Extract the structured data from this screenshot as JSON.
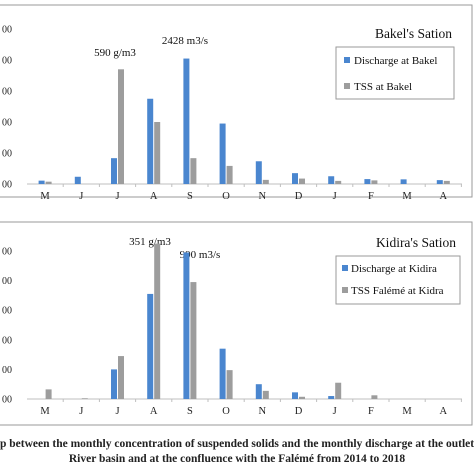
{
  "caption": {
    "line1": "p between the monthly concentration of suspended solids and the monthly discharge at the outlet of",
    "line2": "River basin and at the confluence with the Falémé from 2014 to 2018"
  },
  "colors": {
    "discharge": "#4a86cf",
    "tss": "#9d9d9d",
    "frame": "#9a9a9a",
    "axis": "#bfbfbf"
  },
  "chart_data": [
    {
      "type": "bar",
      "title": "Bakel's Sation",
      "categories": [
        "M",
        "J",
        "J",
        "A",
        "S",
        "O",
        "N",
        "D",
        "J",
        "F",
        "M",
        "A"
      ],
      "ylim": [
        0,
        3000
      ],
      "yticks_visible": [
        "00",
        "00",
        "00",
        "00",
        "00",
        "00"
      ],
      "series": [
        {
          "name": "Discharge at Bakel",
          "values": [
            65,
            140,
            500,
            1650,
            2428,
            1170,
            440,
            210,
            150,
            95,
            90,
            75
          ]
        },
        {
          "name": "TSS at Bakel",
          "values": [
            45,
            0,
            2220,
            1200,
            500,
            350,
            80,
            105,
            60,
            70,
            0,
            60
          ]
        }
      ],
      "annotations": [
        "590 g/m3",
        "2428 m3/s"
      ],
      "legend_position": "top-right"
    },
    {
      "type": "bar",
      "title": "Kidira's Sation",
      "categories": [
        "M",
        "J",
        "J",
        "A",
        "S",
        "O",
        "N",
        "D",
        "J",
        "F",
        "M",
        "A"
      ],
      "ylim": [
        0,
        1000
      ],
      "yticks_visible": [
        "00",
        "00",
        "00",
        "00",
        "00",
        "00"
      ],
      "series": [
        {
          "name": "Discharge at Kidira",
          "values": [
            0,
            0,
            200,
            710,
            990,
            340,
            100,
            45,
            20,
            0,
            0,
            0
          ]
        },
        {
          "name": "TSS Falémé at Kidra",
          "values": [
            65,
            5,
            290,
            1050,
            790,
            195,
            55,
            15,
            110,
            25,
            0,
            0
          ]
        }
      ],
      "annotations": [
        "351 g/m3",
        "990 m3/s"
      ],
      "legend_position": "top-right"
    }
  ]
}
